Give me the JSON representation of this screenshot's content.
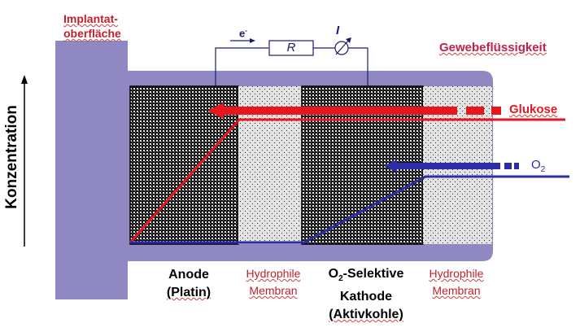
{
  "labels": {
    "implant_line1": "Implantat-",
    "implant_line2": "oberfläche",
    "tissue_fluid": "Gewebeflüssigkeit",
    "concentration": "Konzentration",
    "electron": "e",
    "electron_sup": "-",
    "resistor": "R",
    "current": "I",
    "glucose": "Glukose",
    "oxygen": "O",
    "oxygen_sub": "2",
    "anode_line1": "Anode",
    "anode_line2": "(Platin)",
    "membrane1_line1": "Hydrophile",
    "membrane1_line2": "Membran",
    "cathode_line1_pre": "O",
    "cathode_line1_sub": "2",
    "cathode_line1_post": "-Selektive",
    "cathode_line2": "Kathode",
    "cathode_line3": "(Aktivkohle)",
    "membrane2_line1": "Hydrophile",
    "membrane2_line2": "Membran"
  },
  "colors": {
    "implant": "#8f88c2",
    "glucose": "#e8161c",
    "oxygen": "#2c2ca8",
    "circuit": "#1a1a6e",
    "label_red": "#c0202a",
    "tissue_label": "#c0204a"
  }
}
